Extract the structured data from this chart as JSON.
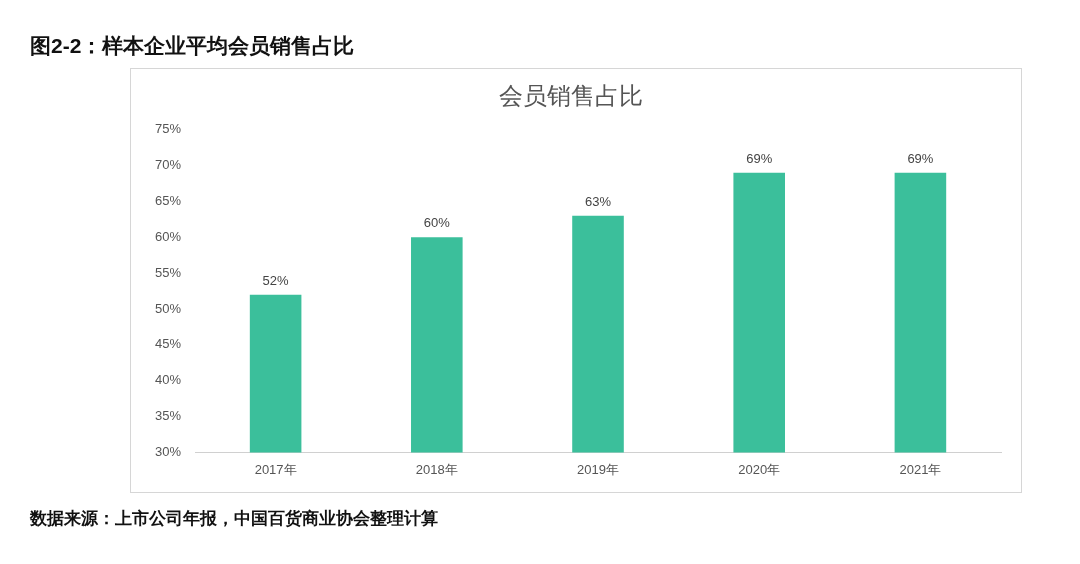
{
  "chart_data": {
    "type": "bar",
    "title": "图2-2：样本企业平均会员销售占比",
    "subtitle": "会员销售占比",
    "categories": [
      "2017年",
      "2018年",
      "2019年",
      "2020年",
      "2021年"
    ],
    "values": [
      52,
      60,
      63,
      69,
      69
    ],
    "color": "#3bbf9b",
    "value_labels": [
      "52%",
      "60%",
      "63%",
      "69%",
      "69%"
    ],
    "ylim": [
      30,
      75
    ],
    "yticks": [
      {
        "value": 30,
        "label": "30%"
      },
      {
        "value": 35,
        "label": "35%"
      },
      {
        "value": 40,
        "label": "40%"
      },
      {
        "value": 45,
        "label": "45%"
      },
      {
        "value": 50,
        "label": "50%"
      },
      {
        "value": 55,
        "label": "55%"
      },
      {
        "value": 60,
        "label": "60%"
      },
      {
        "value": 65,
        "label": "65%"
      },
      {
        "value": 70,
        "label": "70%"
      },
      {
        "value": 75,
        "label": "75%"
      }
    ],
    "grid": false,
    "legend": false,
    "annotations": [
      "数据来源：上市公司年报，中国百货商业协会整理计算"
    ]
  }
}
